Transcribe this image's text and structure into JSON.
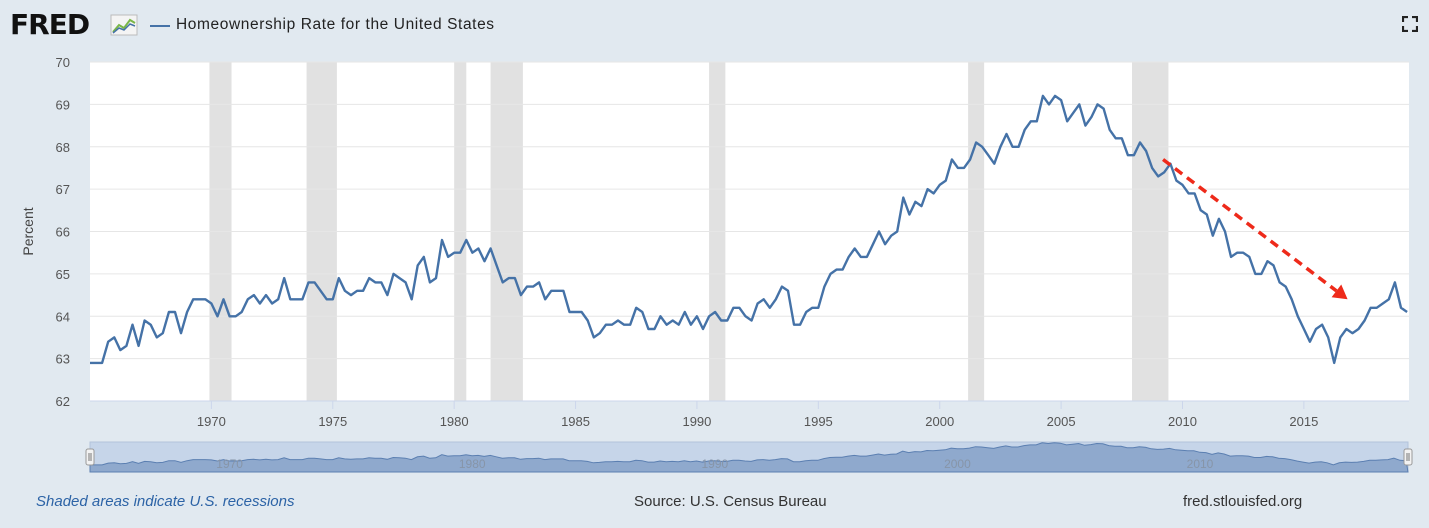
{
  "header": {
    "logo_text": "FRED",
    "title": "Homeownership Rate for the United States",
    "fullscreen_icon": "expand-icon"
  },
  "footer": {
    "recession_note": "Shaded areas indicate U.S. recessions",
    "source": "Source: U.S. Census Bureau",
    "site": "fred.stlouisfed.org"
  },
  "colors": {
    "series": "#4572a7",
    "recession": "#e1e1e1",
    "arrow": "#ee2a1a",
    "background": "#e1e9f0",
    "plot": "#ffffff"
  },
  "chart_data": {
    "type": "line",
    "title": "Homeownership Rate for the United States",
    "xlabel": "",
    "ylabel": "Percent",
    "xlim": [
      1965,
      2019.33
    ],
    "ylim": [
      62,
      70
    ],
    "x_ticks": [
      "1970",
      "1975",
      "1980",
      "1985",
      "1990",
      "1995",
      "2000",
      "2005",
      "2010",
      "2015"
    ],
    "y_ticks": [
      "62",
      "63",
      "64",
      "65",
      "66",
      "67",
      "68",
      "69",
      "70"
    ],
    "grid": "horizontal",
    "frequency": "quarterly",
    "start": 1965.0,
    "series": [
      {
        "name": "Homeownership Rate for the United States",
        "values": [
          62.9,
          62.9,
          62.9,
          63.4,
          63.5,
          63.2,
          63.3,
          63.8,
          63.3,
          63.9,
          63.8,
          63.5,
          63.6,
          64.1,
          64.1,
          63.6,
          64.1,
          64.4,
          64.4,
          64.4,
          64.3,
          64.0,
          64.4,
          64.0,
          64.0,
          64.1,
          64.4,
          64.5,
          64.3,
          64.5,
          64.3,
          64.4,
          64.9,
          64.4,
          64.4,
          64.4,
          64.8,
          64.8,
          64.6,
          64.4,
          64.4,
          64.9,
          64.6,
          64.5,
          64.6,
          64.6,
          64.9,
          64.8,
          64.8,
          64.5,
          65.0,
          64.9,
          64.8,
          64.4,
          65.2,
          65.4,
          64.8,
          64.9,
          65.8,
          65.4,
          65.5,
          65.5,
          65.8,
          65.5,
          65.6,
          65.3,
          65.6,
          65.2,
          64.8,
          64.9,
          64.9,
          64.5,
          64.7,
          64.7,
          64.8,
          64.4,
          64.6,
          64.6,
          64.6,
          64.1,
          64.1,
          64.1,
          63.9,
          63.5,
          63.6,
          63.8,
          63.8,
          63.9,
          63.8,
          63.8,
          64.2,
          64.1,
          63.7,
          63.7,
          64.0,
          63.8,
          63.9,
          63.8,
          64.1,
          63.8,
          64.0,
          63.7,
          64.0,
          64.1,
          63.9,
          63.9,
          64.2,
          64.2,
          64.0,
          63.9,
          64.3,
          64.4,
          64.2,
          64.4,
          64.7,
          64.6,
          63.8,
          63.8,
          64.1,
          64.2,
          64.2,
          64.7,
          65.0,
          65.1,
          65.1,
          65.4,
          65.6,
          65.4,
          65.4,
          65.7,
          66.0,
          65.7,
          65.9,
          66.0,
          66.8,
          66.4,
          66.7,
          66.6,
          67.0,
          66.9,
          67.1,
          67.2,
          67.7,
          67.5,
          67.5,
          67.7,
          68.1,
          68.0,
          67.8,
          67.6,
          68.0,
          68.3,
          68.0,
          68.0,
          68.4,
          68.6,
          68.6,
          69.2,
          69.0,
          69.2,
          69.1,
          68.6,
          68.8,
          69.0,
          68.5,
          68.7,
          69.0,
          68.9,
          68.4,
          68.2,
          68.2,
          67.8,
          67.8,
          68.1,
          67.9,
          67.5,
          67.3,
          67.4,
          67.6,
          67.2,
          67.1,
          66.9,
          66.9,
          66.5,
          66.4,
          65.9,
          66.3,
          66.0,
          65.4,
          65.5,
          65.5,
          65.4,
          65.0,
          65.0,
          65.3,
          65.2,
          64.8,
          64.7,
          64.4,
          64.0,
          63.7,
          63.4,
          63.7,
          63.8,
          63.5,
          62.9,
          63.5,
          63.7,
          63.6,
          63.7,
          63.9,
          64.2,
          64.2,
          64.3,
          64.4,
          64.8,
          64.2,
          64.1
        ]
      }
    ],
    "recessions": [
      [
        1969.92,
        1970.83
      ],
      [
        1973.92,
        1975.17
      ],
      [
        1980.0,
        1980.5
      ],
      [
        1981.5,
        1982.83
      ],
      [
        1990.5,
        1991.17
      ],
      [
        2001.17,
        2001.83
      ],
      [
        2007.92,
        2009.42
      ]
    ],
    "annotations": [
      {
        "type": "dashed-arrow",
        "from": [
          2009.2,
          67.7
        ],
        "to": [
          2016.8,
          64.4
        ]
      }
    ],
    "navigator": {
      "x_ticks": [
        "1970",
        "1980",
        "1990",
        "2000",
        "2010"
      ]
    }
  }
}
